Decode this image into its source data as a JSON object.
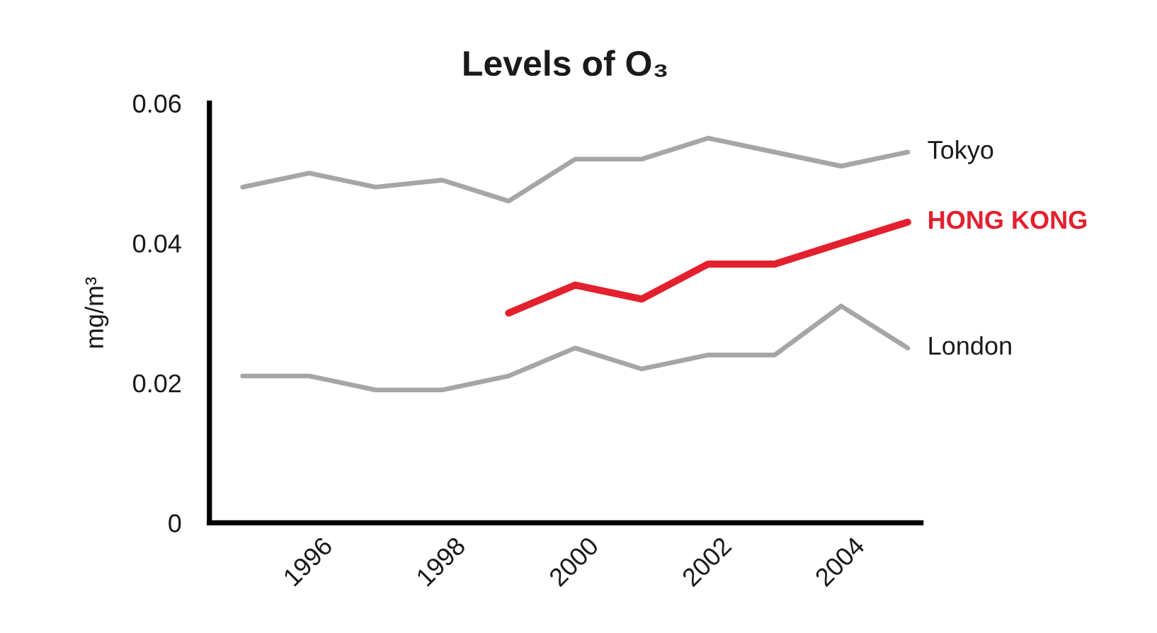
{
  "chart_data": {
    "type": "line",
    "title": "Levels of O₃",
    "ylabel": "mg/m³",
    "x": [
      1995,
      1996,
      1997,
      1998,
      1999,
      2000,
      2001,
      2002,
      2003,
      2004,
      2005
    ],
    "xlim": [
      1994.5,
      2005.2
    ],
    "xticks": [
      1996,
      1998,
      2000,
      2002,
      2004
    ],
    "ylim": [
      0,
      0.06
    ],
    "yticks": [
      0,
      0.02,
      0.04,
      0.06
    ],
    "series": [
      {
        "name": "Tokyo",
        "color": "#a6a6a6",
        "values": [
          0.048,
          0.05,
          0.048,
          0.049,
          0.046,
          0.052,
          0.052,
          0.055,
          0.053,
          0.051,
          0.053
        ]
      },
      {
        "name": "HONG KONG",
        "color": "#e3202e",
        "values": [
          null,
          null,
          null,
          null,
          0.03,
          0.034,
          0.032,
          0.037,
          0.037,
          0.04,
          0.043
        ]
      },
      {
        "name": "London",
        "color": "#a6a6a6",
        "values": [
          0.021,
          0.021,
          0.019,
          0.019,
          0.021,
          0.025,
          0.022,
          0.024,
          0.024,
          0.031,
          0.025
        ]
      }
    ]
  }
}
